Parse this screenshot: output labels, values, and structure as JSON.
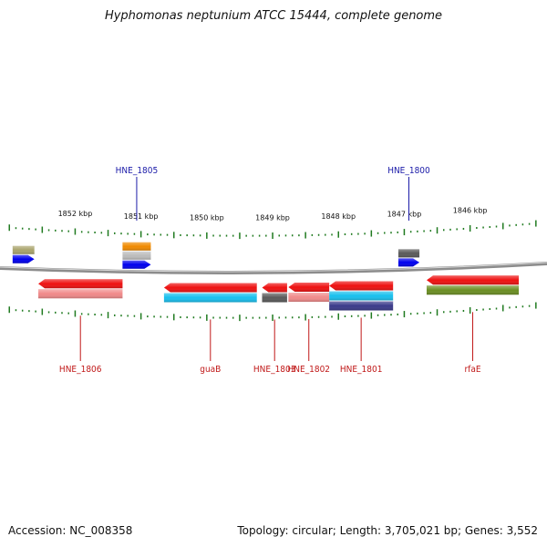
{
  "title": "Hyphomonas neptunium ATCC 15444, complete genome",
  "footer": {
    "accession": "Accession: NC_008358",
    "summary": "Topology: circular; Length: 3,705,021 bp; Genes: 3,552"
  },
  "colors": {
    "backbone": "#8c8c8c",
    "tick": "#1f7a1f",
    "forward_label": "#1a1aa8",
    "reverse_label": "#c01818"
  },
  "scale": {
    "unit": "kbp",
    "ticks": [
      {
        "label": "1852 kbp",
        "pos": 1852
      },
      {
        "label": "1851 kbp",
        "pos": 1851
      },
      {
        "label": "1850 kbp",
        "pos": 1850
      },
      {
        "label": "1849 kbp",
        "pos": 1849
      },
      {
        "label": "1848 kbp",
        "pos": 1848
      },
      {
        "label": "1847 kbp",
        "pos": 1847
      },
      {
        "label": "1846 kbp",
        "pos": 1846
      }
    ]
  },
  "features": [
    {
      "id": "f1",
      "name": "",
      "strand": "+",
      "start": 1852.95,
      "end": 1852.62,
      "color": "#a9a46c"
    },
    {
      "id": "f2",
      "name": "",
      "strand": "+",
      "start": 1852.95,
      "end": 1852.62,
      "color": "#0000ee"
    },
    {
      "id": "f3",
      "name": "",
      "strand": "+",
      "start": 1851.28,
      "end": 1850.85,
      "color": "#f08a00"
    },
    {
      "id": "f4",
      "name": "",
      "strand": "+",
      "start": 1851.28,
      "end": 1850.85,
      "color": "#bcbcbc"
    },
    {
      "id": "f5",
      "name": "HNE_1805",
      "strand": "+",
      "start": 1851.28,
      "end": 1850.85,
      "color": "#0000ee"
    },
    {
      "id": "f6",
      "name": "",
      "strand": "+",
      "start": 1847.09,
      "end": 1846.77,
      "color": "#5a5a5a"
    },
    {
      "id": "f7",
      "name": "HNE_1800",
      "strand": "+",
      "start": 1847.09,
      "end": 1846.77,
      "color": "#0000ee"
    },
    {
      "id": "f8",
      "name": "HNE_1806",
      "strand": "-",
      "start": 1852.56,
      "end": 1851.28,
      "color": "#ee1111"
    },
    {
      "id": "f9",
      "name": "",
      "strand": "-",
      "start": 1852.56,
      "end": 1851.28,
      "color": "#f08a8a"
    },
    {
      "id": "f10",
      "name": "guaB",
      "strand": "-",
      "start": 1850.65,
      "end": 1849.24,
      "color": "#ee1111"
    },
    {
      "id": "f11",
      "name": "",
      "strand": "-",
      "start": 1850.65,
      "end": 1849.24,
      "color": "#18c0ee"
    },
    {
      "id": "f12",
      "name": "HNE_1803",
      "strand": "-",
      "start": 1849.16,
      "end": 1848.78,
      "color": "#ee1111"
    },
    {
      "id": "f13",
      "name": "",
      "strand": "-",
      "start": 1849.16,
      "end": 1848.78,
      "color": "#5a5a5a"
    },
    {
      "id": "f14",
      "name": "HNE_1802",
      "strand": "-",
      "start": 1848.76,
      "end": 1848.14,
      "color": "#ee1111"
    },
    {
      "id": "f15",
      "name": "",
      "strand": "-",
      "start": 1848.76,
      "end": 1848.14,
      "color": "#f08a8a"
    },
    {
      "id": "f16",
      "name": "HNE_1801",
      "strand": "-",
      "start": 1848.14,
      "end": 1847.17,
      "color": "#ee1111"
    },
    {
      "id": "f17",
      "name": "",
      "strand": "-",
      "start": 1848.14,
      "end": 1847.17,
      "color": "#18c0ee"
    },
    {
      "id": "f18",
      "name": "",
      "strand": "-",
      "start": 1848.14,
      "end": 1847.17,
      "color": "#3a3a8a"
    },
    {
      "id": "f19",
      "name": "rfaE",
      "strand": "-",
      "start": 1846.66,
      "end": 1845.26,
      "color": "#ee1111"
    },
    {
      "id": "f20",
      "name": "",
      "strand": "-",
      "start": 1846.66,
      "end": 1845.26,
      "color": "#6b8e23"
    }
  ]
}
